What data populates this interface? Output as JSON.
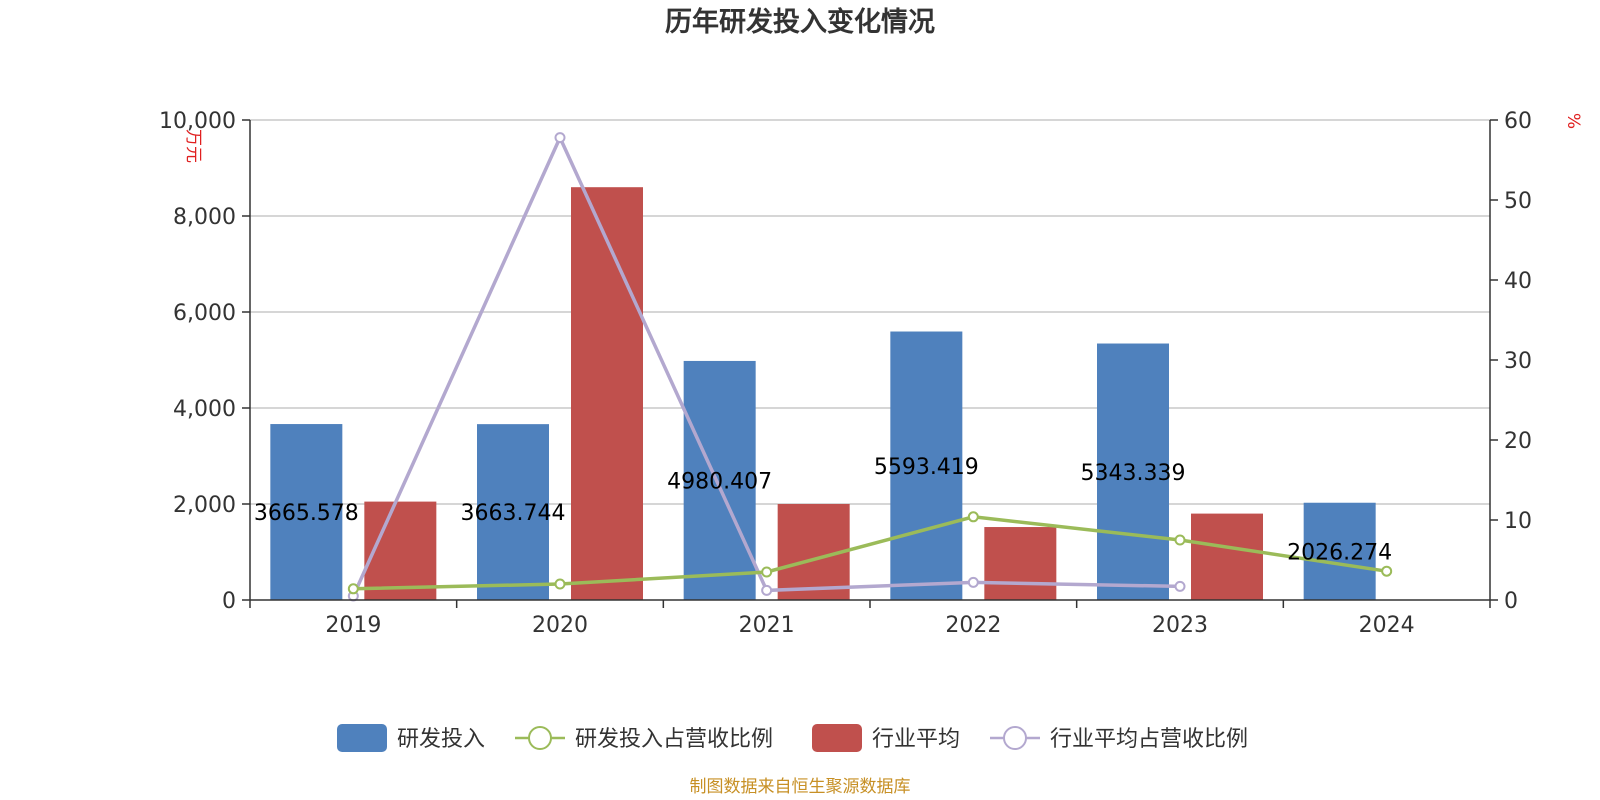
{
  "title": "历年研发投入变化情况",
  "source": "制图数据来自恒生聚源数据库",
  "colors": {
    "rd": "#4f81bd",
    "rd_ratio": "#9bbb59",
    "ind": "#c0504d",
    "ind_ratio": "#b3a8cf"
  },
  "chart_data": {
    "type": "bar",
    "categories": [
      "2019",
      "2020",
      "2021",
      "2022",
      "2023",
      "2024"
    ],
    "y_left": {
      "label": "万元",
      "ylim": [
        0,
        10000
      ],
      "ticks": [
        0,
        2000,
        4000,
        6000,
        8000,
        10000
      ],
      "tick_labels": [
        "0",
        "2,000",
        "4,000",
        "6,000",
        "8,000",
        "10,000"
      ]
    },
    "y_right": {
      "label": "%",
      "ylim": [
        0,
        60
      ],
      "ticks": [
        0,
        10,
        20,
        30,
        40,
        50,
        60
      ],
      "tick_labels": [
        "0",
        "10",
        "20",
        "30",
        "40",
        "50",
        "60"
      ]
    },
    "grid": true,
    "legend_position": "bottom",
    "series": [
      {
        "name": "研发投入",
        "type": "bar",
        "axis": "left",
        "values": [
          3665.578,
          3663.744,
          4980.407,
          5593.419,
          5343.339,
          2026.274
        ],
        "labels": [
          "3665.578",
          "3663.744",
          "4980.407",
          "5593.419",
          "5343.339",
          "2026.274"
        ]
      },
      {
        "name": "研发投入占营收比例",
        "type": "line",
        "axis": "right",
        "values": [
          1.4,
          2.0,
          3.5,
          10.4,
          7.5,
          3.6
        ]
      },
      {
        "name": "行业平均",
        "type": "bar",
        "axis": "left",
        "values": [
          2050,
          8600,
          2000,
          1520,
          1800,
          null
        ]
      },
      {
        "name": "行业平均占营收比例",
        "type": "line",
        "axis": "right",
        "values": [
          0.5,
          57.8,
          1.2,
          2.2,
          1.7,
          null
        ]
      }
    ]
  }
}
